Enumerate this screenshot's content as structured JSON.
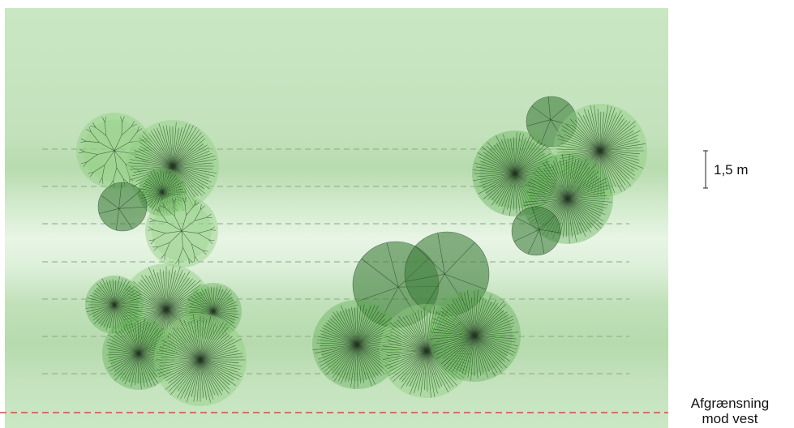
{
  "scale": {
    "label": "1,5 m"
  },
  "boundary": {
    "line1": "Afgrænsning",
    "line2": "mod vest"
  },
  "colors": {
    "field_top": "#c8e6c2",
    "field_band": "#b9dcb0",
    "field_light": "#e6f3e2",
    "dash_line": "#8aa888",
    "boundary_line": "#d04a4a",
    "canopy_light": "#8fcf7e",
    "canopy_mid": "#5fae52",
    "canopy_dark": "#3f7f3c",
    "branch": "#263826"
  },
  "plants": [
    {
      "name": "bush-1",
      "type": "branching",
      "tone": "light"
    },
    {
      "name": "bush-2",
      "type": "radial",
      "tone": "light"
    },
    {
      "name": "bush-3",
      "type": "radial",
      "tone": "mid"
    },
    {
      "name": "bush-4",
      "type": "faceted",
      "tone": "dark"
    },
    {
      "name": "bush-5",
      "type": "branching",
      "tone": "light"
    },
    {
      "name": "bush-6",
      "type": "radial",
      "tone": "light"
    },
    {
      "name": "bush-7",
      "type": "radial",
      "tone": "mid"
    },
    {
      "name": "bush-8",
      "type": "radial",
      "tone": "mid"
    },
    {
      "name": "bush-9",
      "type": "radial",
      "tone": "mid"
    },
    {
      "name": "bush-10",
      "type": "radial",
      "tone": "light"
    },
    {
      "name": "bush-11",
      "type": "faceted",
      "tone": "dark"
    },
    {
      "name": "bush-12",
      "type": "faceted",
      "tone": "dark"
    },
    {
      "name": "bush-13",
      "type": "radial",
      "tone": "mid"
    },
    {
      "name": "bush-14",
      "type": "radial",
      "tone": "light"
    },
    {
      "name": "bush-15",
      "type": "radial",
      "tone": "mid"
    },
    {
      "name": "bush-16",
      "type": "faceted",
      "tone": "dark"
    },
    {
      "name": "bush-17",
      "type": "radial",
      "tone": "light"
    },
    {
      "name": "bush-18",
      "type": "radial",
      "tone": "mid"
    },
    {
      "name": "bush-19",
      "type": "radial",
      "tone": "mid"
    },
    {
      "name": "bush-20",
      "type": "faceted",
      "tone": "dark"
    }
  ]
}
